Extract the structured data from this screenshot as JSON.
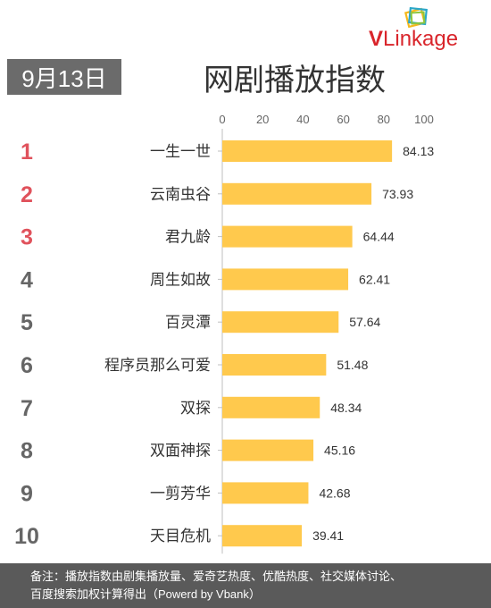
{
  "header": {
    "date": "9月13日",
    "title": "网剧播放指数",
    "logo": {
      "v": "V",
      "rest": "Linkage"
    }
  },
  "chart_data": {
    "type": "bar",
    "orientation": "horizontal",
    "title": "网剧播放指数",
    "xlim": [
      0,
      100
    ],
    "ticks": [
      0,
      20,
      40,
      60,
      80,
      100
    ],
    "ranks": [
      "1",
      "2",
      "3",
      "4",
      "5",
      "6",
      "7",
      "8",
      "9",
      "10"
    ],
    "categories": [
      "一生一世",
      "云南虫谷",
      "君九龄",
      "周生如故",
      "百灵潭",
      "程序员那么可爱",
      "双探",
      "双面神探",
      "一剪芳华",
      "天目危机"
    ],
    "values": [
      84.13,
      73.93,
      64.44,
      62.41,
      57.64,
      51.48,
      48.34,
      45.16,
      42.68,
      39.41
    ],
    "value_labels": [
      "84.13",
      "73.93",
      "64.44",
      "62.41",
      "57.64",
      "51.48",
      "48.34",
      "45.16",
      "42.68",
      "39.41"
    ],
    "colors": {
      "bar": "#ffc94d",
      "top_rank": "#e0525c",
      "rank": "#666666",
      "axis": "#bfbfbf",
      "label": "#333333"
    }
  },
  "footer": {
    "line1": "备注：播放指数由剧集播放量、爱奇艺热度、优酷热度、社交媒体讨论、",
    "line2": "百度搜索加权计算得出（Powerd by Vbank）"
  }
}
